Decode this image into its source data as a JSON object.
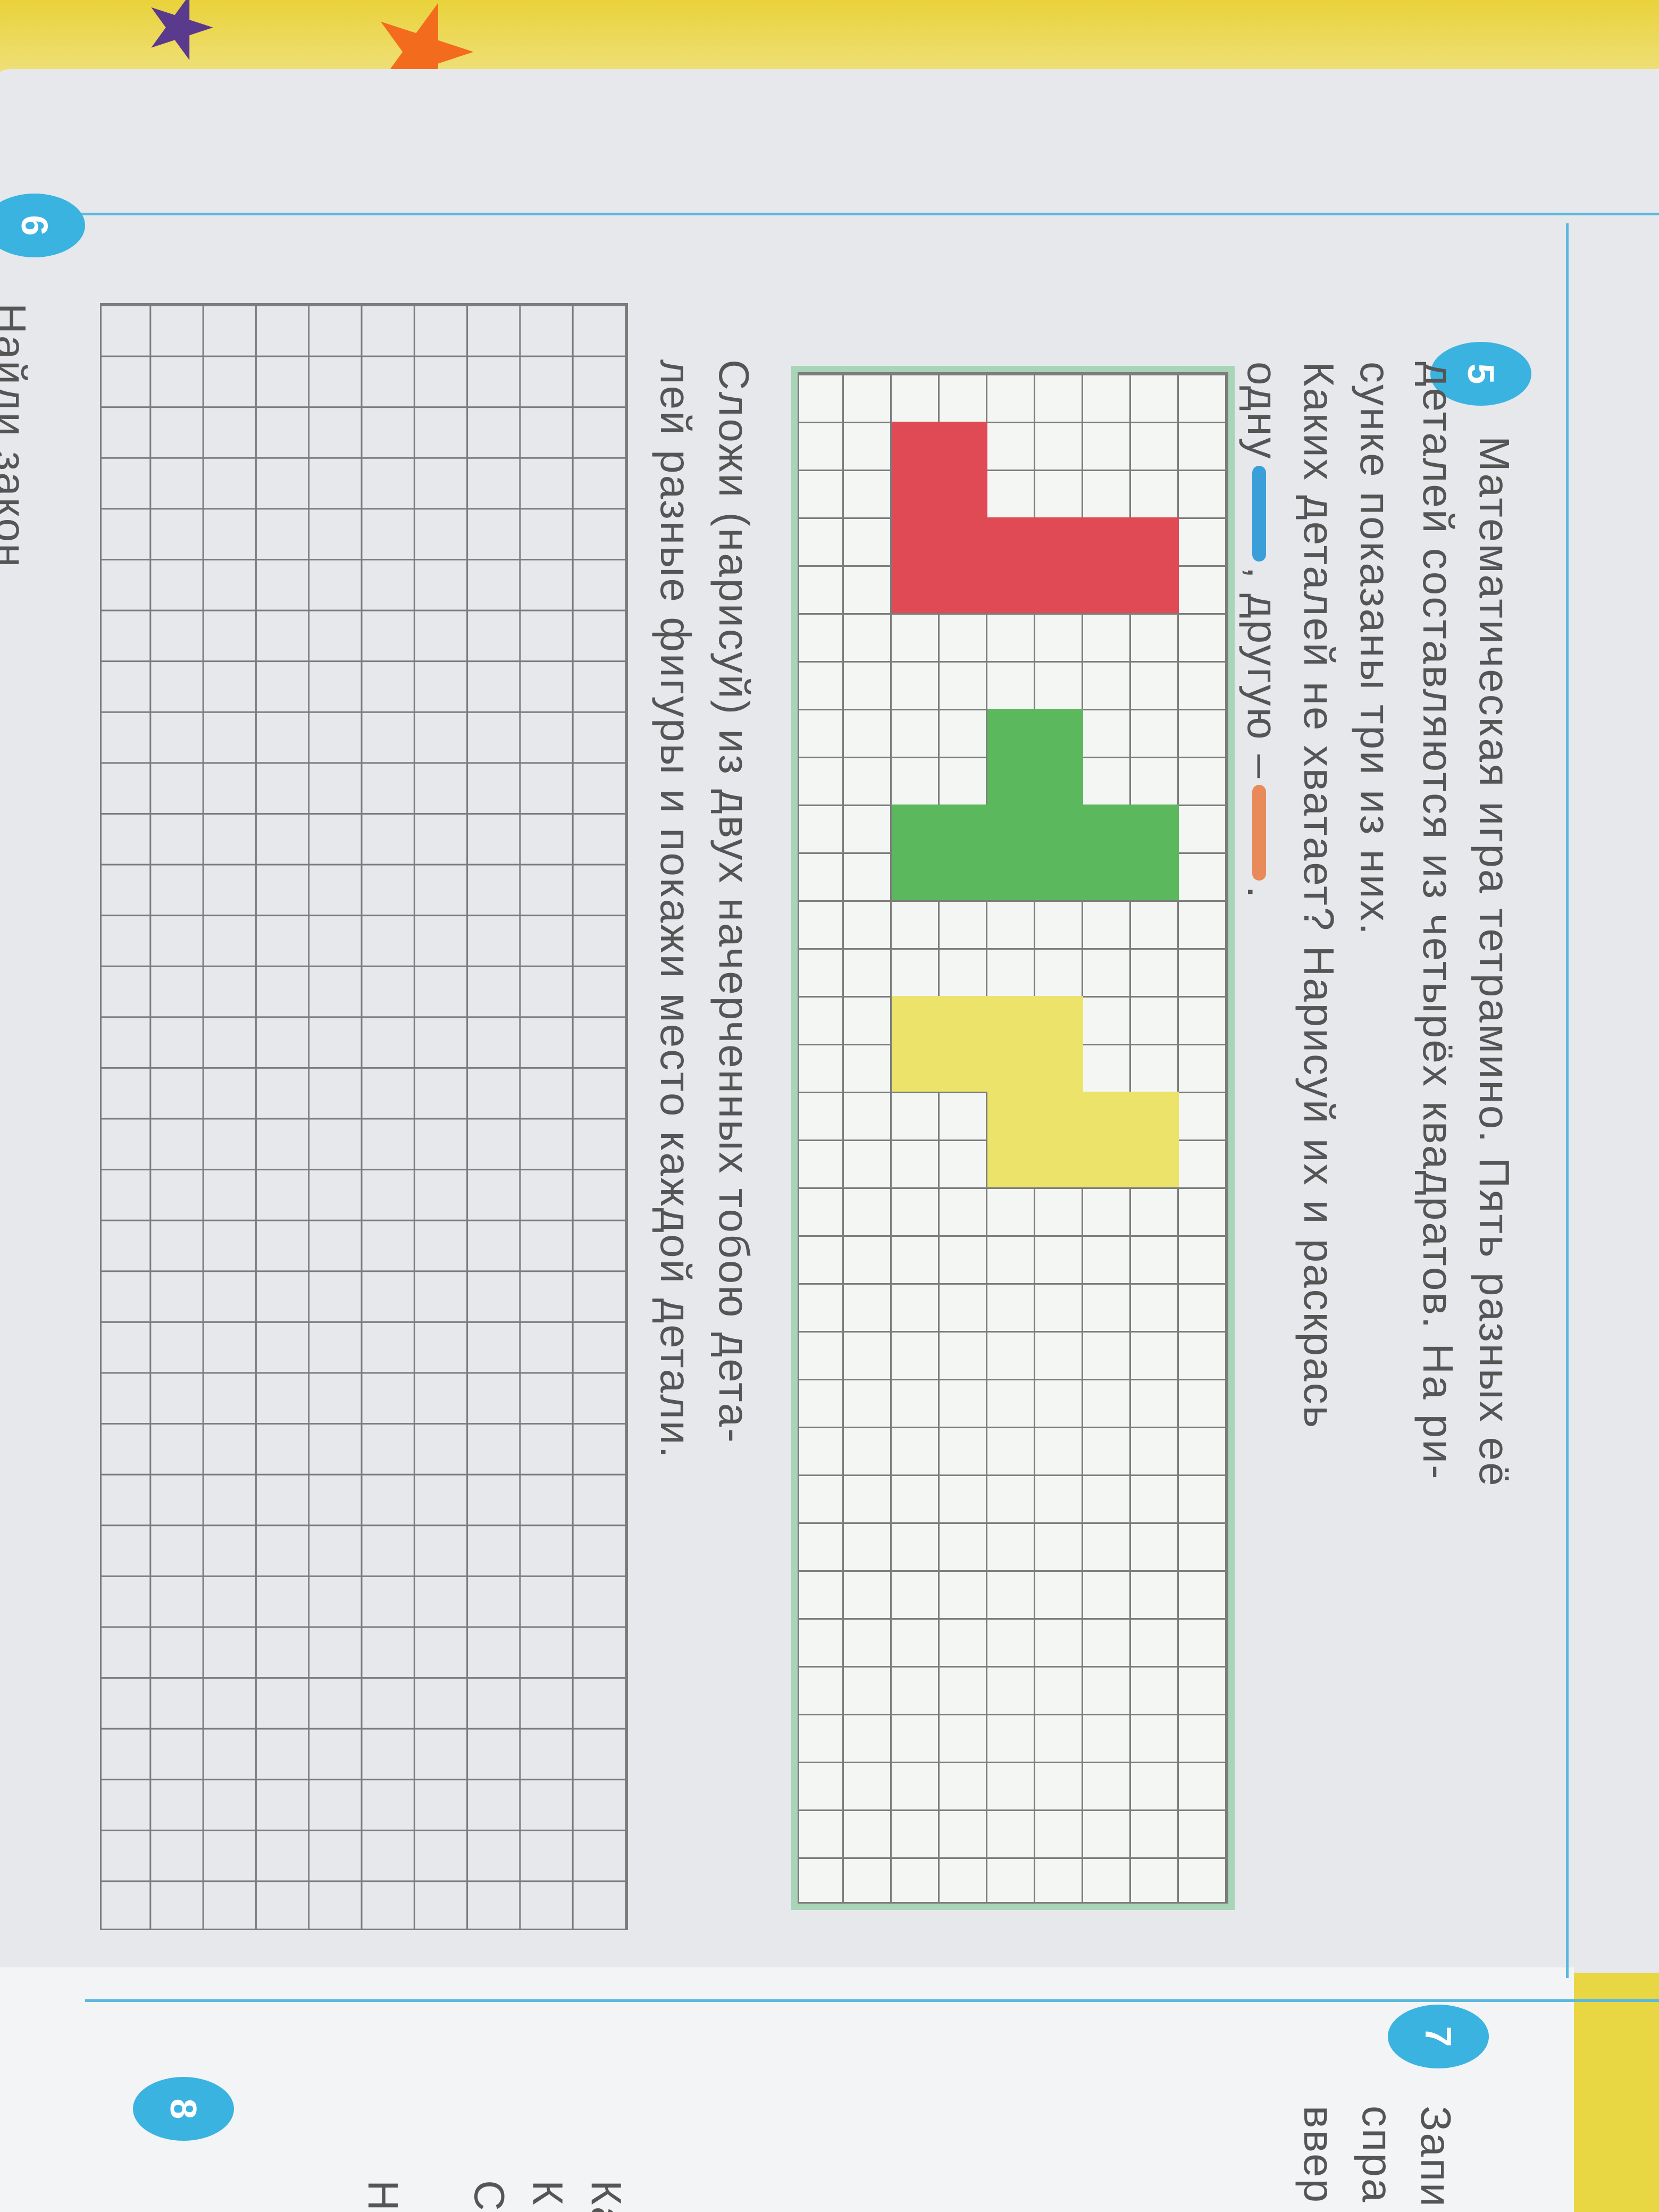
{
  "exercise5": {
    "number": "5",
    "lines": [
      "Математическая игра тетрамино. Пять разных её",
      "деталей составляются из четырёх квадратов. На ри-",
      "сунке показаны три из них.",
      "Каких деталей не хватает? Нарисуй их и раскрась"
    ],
    "line5_a": "одну",
    "line5_b": ", другую –",
    "line5_c": ".",
    "pencil_colors": {
      "first": "#3a9fd8",
      "second": "#e98a5a"
    },
    "shape_colors": {
      "L": "#e04a55",
      "T": "#5cb85c",
      "S": "#ece36a"
    },
    "task_lines": [
      "Сложи (нарисуй) из двух начерченных тобою дета-",
      "лей разные фигуры и покажи место каждой детали."
    ]
  },
  "exercise6": {
    "number": "6",
    "text": "Найди закон"
  },
  "exercise7": {
    "number": "7",
    "lines": [
      "Запи",
      "спра",
      "ввер"
    ]
  },
  "exercise8": {
    "number": "8",
    "lines": [
      "Ка",
      "К",
      "С",
      "Н"
    ]
  },
  "accent_color": "#3bb3e0"
}
